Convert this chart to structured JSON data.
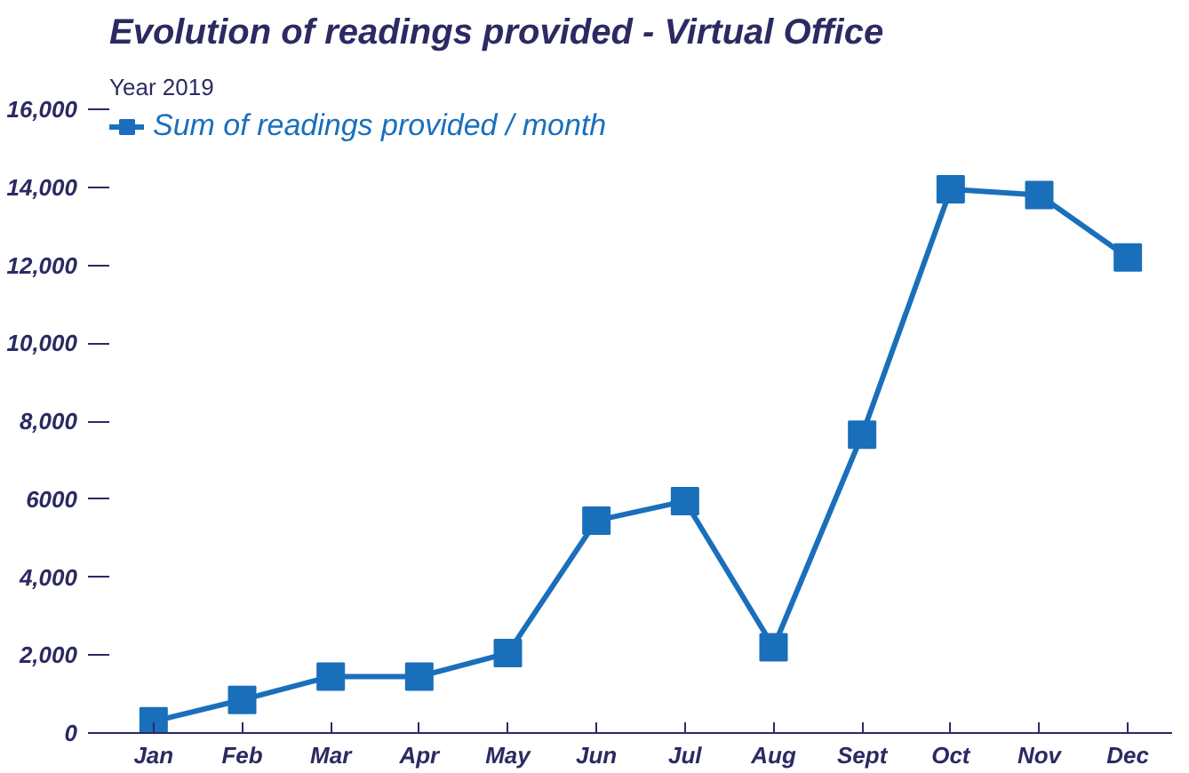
{
  "chart_data": {
    "type": "line",
    "title": "Evolution of readings provided - Virtual Office",
    "subtitle": "Year 2019",
    "categories": [
      "Jan",
      "Feb",
      "Mar",
      "Apr",
      "May",
      "Jun",
      "Jul",
      "Aug",
      "Sept",
      "Oct",
      "Nov",
      "Dec"
    ],
    "series": [
      {
        "name": "Sum of readings provided / month",
        "color": "#1a6fbb",
        "values": [
          300,
          850,
          1450,
          1450,
          2050,
          5450,
          5950,
          2200,
          7650,
          13950,
          13800,
          12200
        ]
      }
    ],
    "ylim": [
      0,
      16000
    ],
    "yticks": [
      0,
      {
        "value": 2000,
        "label": "2,000"
      },
      {
        "value": 4000,
        "label": "4,000"
      },
      {
        "value": 6000,
        "label": "6000"
      },
      {
        "value": 8000,
        "label": "8,000"
      },
      {
        "value": 10000,
        "label": "10,000"
      },
      {
        "value": 12000,
        "label": "12,000"
      },
      {
        "value": 14000,
        "label": "14,000"
      },
      {
        "value": 16000,
        "label": "16,000"
      }
    ],
    "marker": "square",
    "line_style": "solid",
    "grid": false,
    "legend": "top left"
  }
}
